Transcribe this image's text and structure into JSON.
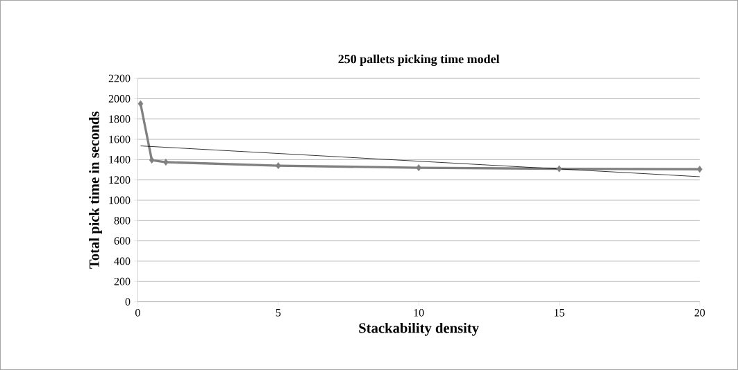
{
  "chart_data": {
    "type": "line",
    "title": "250 pallets picking time model",
    "xlabel": "Stackability density",
    "ylabel": "Total pick time in seconds",
    "xlim": [
      0,
      20
    ],
    "xticks": [
      0,
      5,
      10,
      15,
      20
    ],
    "ylim": [
      0,
      2200
    ],
    "yticks": [
      0,
      200,
      400,
      600,
      800,
      1000,
      1200,
      1400,
      1600,
      1800,
      2000,
      2200
    ],
    "grid": "y",
    "series": [
      {
        "color": "#808080",
        "marker": "diamond",
        "x": [
          0.1,
          0.5,
          1,
          5,
          10,
          15,
          20
        ],
        "values": [
          1950,
          1395,
          1375,
          1340,
          1320,
          1310,
          1305
        ]
      },
      {
        "color": "#000000",
        "marker": "none",
        "x": [
          0.1,
          20
        ],
        "values": [
          1535,
          1232
        ]
      }
    ]
  }
}
